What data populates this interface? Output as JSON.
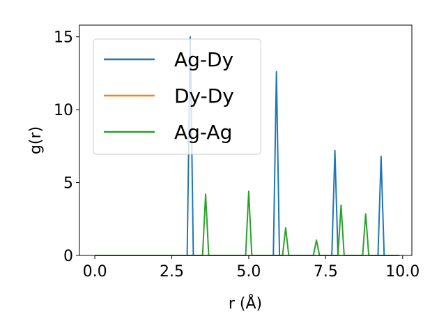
{
  "chart_data": {
    "type": "line",
    "xlabel": "r (Å)",
    "ylabel": "g(r)",
    "xlim": [
      -0.5,
      10.3
    ],
    "ylim": [
      0,
      15.8
    ],
    "xticks": [
      0.0,
      2.5,
      5.0,
      7.5,
      10.0
    ],
    "xtick_labels": [
      "0.0",
      "2.5",
      "5.0",
      "7.5",
      "10.0"
    ],
    "yticks": [
      0,
      5,
      10,
      15
    ],
    "ytick_labels": [
      "0",
      "5",
      "10",
      "15"
    ],
    "grid": false,
    "legend": "top-left",
    "series": [
      {
        "name": "Ag-Dy",
        "color": "#1f77b4",
        "x": [
          0.0,
          3.0,
          3.1,
          3.2,
          5.8,
          5.9,
          6.0,
          7.7,
          7.8,
          7.9,
          9.2,
          9.3,
          9.4,
          9.9
        ],
        "y": [
          0,
          0,
          15.0,
          0,
          0,
          12.6,
          0,
          0,
          7.2,
          0,
          0,
          6.8,
          0,
          0
        ]
      },
      {
        "name": "Dy-Dy",
        "color": "#ff7f0e",
        "x": [
          0.0,
          9.9
        ],
        "y": [
          0,
          0
        ]
      },
      {
        "name": "Ag-Ag",
        "color": "#2ca02c",
        "x": [
          0.0,
          3.5,
          3.6,
          3.7,
          4.9,
          5.0,
          5.1,
          6.1,
          6.2,
          6.3,
          7.1,
          7.2,
          7.3,
          7.9,
          8.0,
          8.1,
          8.7,
          8.8,
          8.9,
          9.9
        ],
        "y": [
          0,
          0,
          4.2,
          0,
          0,
          4.4,
          0,
          0,
          1.9,
          0,
          0,
          1.05,
          0,
          0,
          3.45,
          0,
          0,
          2.85,
          0,
          0
        ]
      }
    ]
  }
}
